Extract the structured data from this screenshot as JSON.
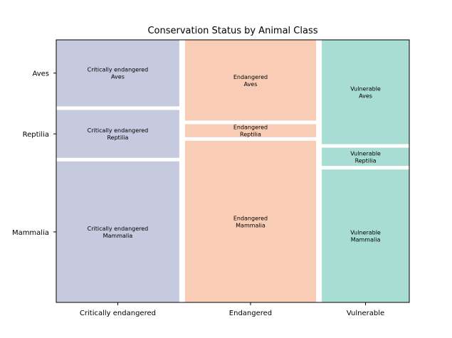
{
  "chart_data": {
    "type": "mosaic",
    "title": "Conservation Status by Animal Class",
    "xlabel": "",
    "ylabel": "",
    "columns": [
      "Critically endangered",
      "Endangered",
      "Vulnerable"
    ],
    "rows": [
      "Aves",
      "Reptilia",
      "Mammalia"
    ],
    "column_widths": [
      0.353,
      0.376,
      0.251
    ],
    "cells": [
      {
        "column": "Critically endangered",
        "row": "Aves",
        "fraction": 0.25,
        "label_lines": [
          "Critically endangered",
          "Aves"
        ]
      },
      {
        "column": "Critically endangered",
        "row": "Reptilia",
        "fraction": 0.18,
        "label_lines": [
          "Critically endangered",
          "Reptilia"
        ]
      },
      {
        "column": "Critically endangered",
        "row": "Mammalia",
        "fraction": 0.53,
        "label_lines": [
          "Critically endangered",
          "Mammalia"
        ]
      },
      {
        "column": "Endangered",
        "row": "Aves",
        "fraction": 0.31,
        "label_lines": [
          "Endangered",
          "Aves"
        ]
      },
      {
        "column": "Endangered",
        "row": "Reptilia",
        "fraction": 0.05,
        "label_lines": [
          "Endangered",
          "Reptilia"
        ]
      },
      {
        "column": "Endangered",
        "row": "Mammalia",
        "fraction": 0.62,
        "label_lines": [
          "Endangered",
          "Mammalia"
        ]
      },
      {
        "column": "Vulnerable",
        "row": "Aves",
        "fraction": 0.4,
        "label_lines": [
          "Vulnerable",
          "Aves"
        ]
      },
      {
        "column": "Vulnerable",
        "row": "Reptilia",
        "fraction": 0.07,
        "label_lines": [
          "Vulnerable",
          "Reptilia"
        ]
      },
      {
        "column": "Vulnerable",
        "row": "Mammalia",
        "fraction": 0.51,
        "label_lines": [
          "Vulnerable",
          "Mammalia"
        ]
      }
    ],
    "colors": {
      "Critically endangered": "#c5cadf",
      "Endangered": "#f9cdb5",
      "Vulnerable": "#a8ddd4"
    },
    "grid": false,
    "legend": "none"
  }
}
